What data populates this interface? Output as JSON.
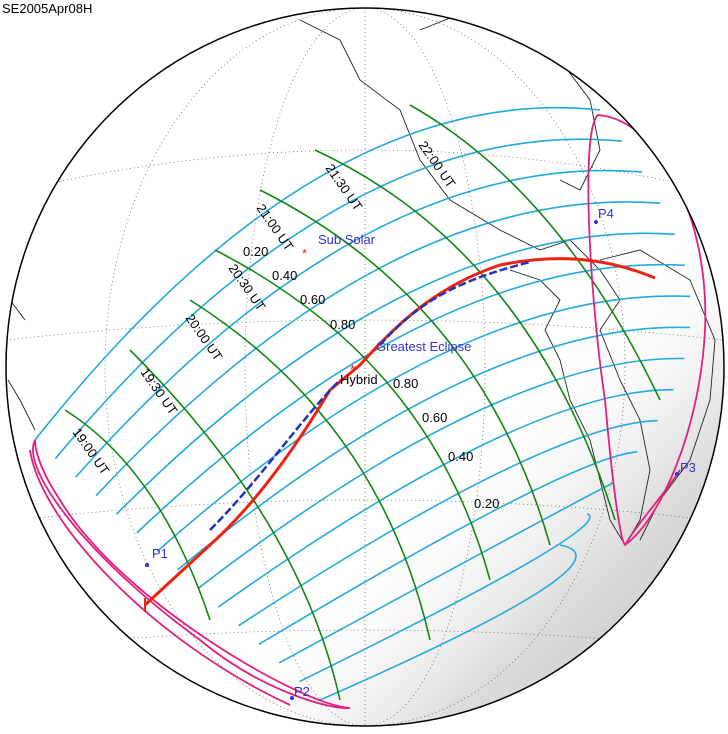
{
  "title": "SE2005Apr08H",
  "labels": {
    "sub_solar": "Sub Solar",
    "greatest_eclipse": "Greatest Eclipse",
    "eclipse_type": "Hybrid"
  },
  "time_labels": [
    "19:00 UT",
    "19:30 UT",
    "20:00 UT",
    "20:30 UT",
    "21:00 UT",
    "21:30 UT",
    "22:00 UT"
  ],
  "magnitude_labels_left": [
    "0.20",
    "0.40",
    "0.60",
    "0.80"
  ],
  "magnitude_labels_right": [
    "0.80",
    "0.60",
    "0.40",
    "0.20"
  ],
  "points": [
    "P1",
    "P2",
    "P3",
    "P4"
  ]
}
